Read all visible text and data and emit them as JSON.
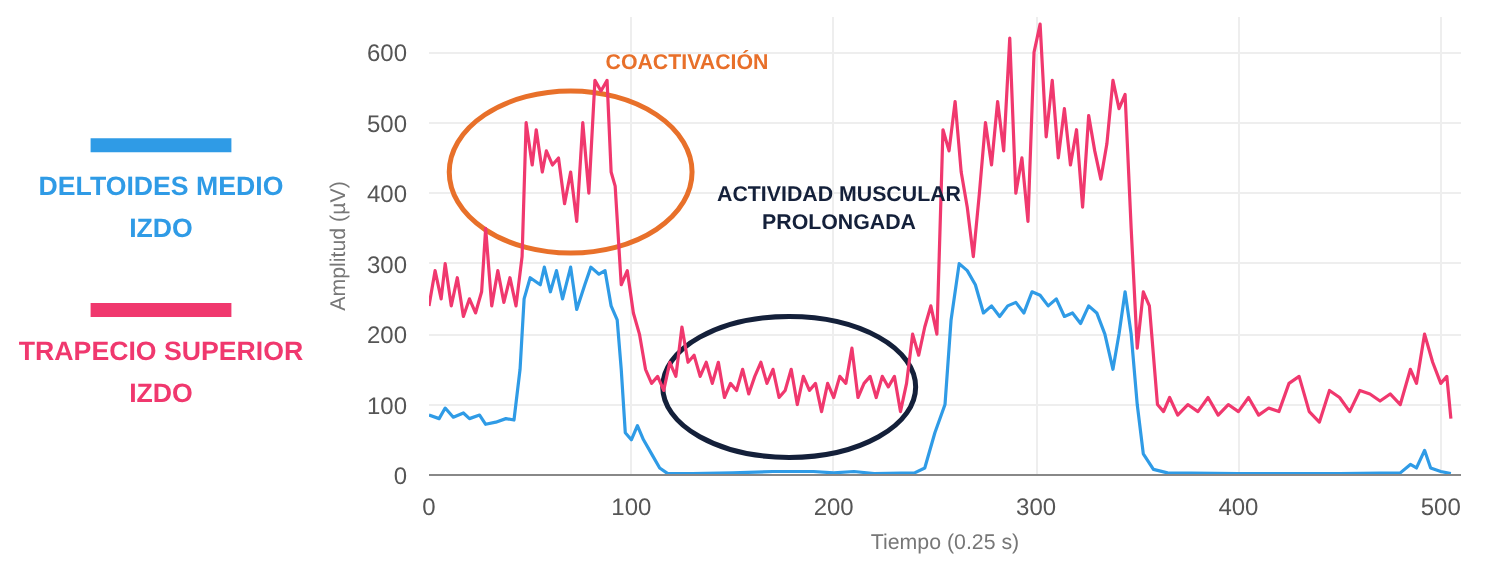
{
  "chart_data": {
    "type": "line",
    "xlabel": "Tiempo (0.25 s)",
    "ylabel": "Amplitud (µV)",
    "xlim": [
      0,
      510
    ],
    "ylim": [
      0,
      650
    ],
    "xticks": [
      0,
      100,
      200,
      300,
      400,
      500
    ],
    "yticks": [
      0,
      100,
      200,
      300,
      400,
      500,
      600
    ],
    "grid": true,
    "legend": "left",
    "marker": "none",
    "line_style": "solid",
    "annotations": [
      "COACTIVACIÓN",
      "ACTIVIDAD MUSCULAR PROLONGADA"
    ],
    "series": [
      {
        "name": "DELTOIDES MEDIO IZDO",
        "color": "#2f9be6",
        "x": [
          0,
          5,
          8,
          12,
          17,
          20,
          25,
          28,
          33,
          38,
          42,
          45,
          47,
          50,
          55,
          57,
          60,
          63,
          66,
          70,
          73,
          77,
          80,
          84,
          87,
          90,
          93,
          95,
          97,
          100,
          103,
          106,
          110,
          114,
          118,
          130,
          150,
          170,
          190,
          200,
          210,
          220,
          240,
          245,
          250,
          255,
          258,
          262,
          266,
          270,
          274,
          278,
          282,
          286,
          290,
          294,
          298,
          302,
          306,
          310,
          314,
          318,
          322,
          326,
          330,
          334,
          338,
          341,
          344,
          347,
          350,
          353,
          358,
          365,
          400,
          450,
          480,
          485,
          488,
          492,
          495,
          500,
          505
        ],
        "values": [
          85,
          80,
          95,
          82,
          88,
          80,
          85,
          72,
          75,
          80,
          78,
          150,
          250,
          280,
          270,
          295,
          260,
          290,
          250,
          295,
          235,
          270,
          295,
          285,
          290,
          240,
          220,
          150,
          60,
          50,
          70,
          50,
          30,
          10,
          2,
          2,
          3,
          5,
          5,
          3,
          5,
          2,
          3,
          10,
          60,
          100,
          220,
          300,
          290,
          270,
          230,
          240,
          225,
          240,
          245,
          230,
          260,
          255,
          240,
          250,
          225,
          230,
          215,
          240,
          230,
          200,
          150,
          200,
          260,
          200,
          100,
          30,
          8,
          3,
          2,
          2,
          3,
          15,
          10,
          35,
          10,
          5,
          2
        ]
      },
      {
        "name": "TRAPECIO SUPERIOR IZDO",
        "color": "#f0386e",
        "x": [
          0,
          3,
          6,
          8,
          11,
          14,
          17,
          20,
          23,
          26,
          28,
          31,
          34,
          37,
          40,
          43,
          46,
          48,
          51,
          53,
          56,
          58,
          61,
          64,
          67,
          70,
          73,
          76,
          79,
          82,
          85,
          88,
          90,
          92,
          95,
          98,
          101,
          104,
          107,
          110,
          113,
          116,
          119,
          122,
          125,
          128,
          131,
          134,
          137,
          140,
          143,
          146,
          149,
          152,
          155,
          158,
          161,
          164,
          167,
          170,
          173,
          176,
          179,
          182,
          185,
          188,
          191,
          194,
          197,
          200,
          203,
          206,
          209,
          212,
          215,
          218,
          221,
          224,
          227,
          230,
          233,
          236,
          239,
          242,
          245,
          248,
          251,
          254,
          257,
          260,
          263,
          266,
          269,
          272,
          275,
          278,
          281,
          284,
          287,
          290,
          293,
          296,
          299,
          302,
          305,
          308,
          311,
          314,
          317,
          320,
          323,
          326,
          329,
          332,
          335,
          338,
          341,
          344,
          347,
          350,
          353,
          356,
          360,
          363,
          366,
          370,
          375,
          380,
          385,
          390,
          395,
          400,
          405,
          410,
          415,
          420,
          425,
          430,
          435,
          440,
          445,
          450,
          455,
          460,
          465,
          470,
          475,
          480,
          485,
          488,
          492,
          496,
          500,
          503,
          505
        ],
        "values": [
          240,
          290,
          250,
          300,
          240,
          280,
          225,
          250,
          230,
          260,
          350,
          240,
          290,
          245,
          280,
          240,
          310,
          500,
          440,
          490,
          430,
          460,
          440,
          450,
          385,
          430,
          360,
          500,
          400,
          560,
          545,
          560,
          430,
          410,
          270,
          290,
          230,
          200,
          150,
          130,
          140,
          120,
          160,
          140,
          210,
          160,
          170,
          140,
          160,
          130,
          160,
          110,
          130,
          120,
          150,
          115,
          140,
          160,
          130,
          150,
          110,
          120,
          150,
          100,
          140,
          120,
          130,
          90,
          130,
          110,
          140,
          130,
          180,
          110,
          130,
          140,
          110,
          140,
          125,
          140,
          90,
          130,
          200,
          170,
          210,
          240,
          200,
          490,
          460,
          530,
          430,
          380,
          310,
          400,
          500,
          440,
          530,
          460,
          620,
          400,
          450,
          360,
          600,
          640,
          480,
          560,
          450,
          520,
          440,
          490,
          380,
          510,
          460,
          420,
          470,
          560,
          520,
          540,
          350,
          180,
          260,
          240,
          100,
          90,
          110,
          85,
          100,
          90,
          110,
          85,
          100,
          90,
          110,
          85,
          95,
          90,
          130,
          140,
          90,
          75,
          120,
          110,
          90,
          120,
          115,
          105,
          115,
          100,
          150,
          130,
          200,
          160,
          130,
          140,
          80
        ]
      }
    ]
  }
}
